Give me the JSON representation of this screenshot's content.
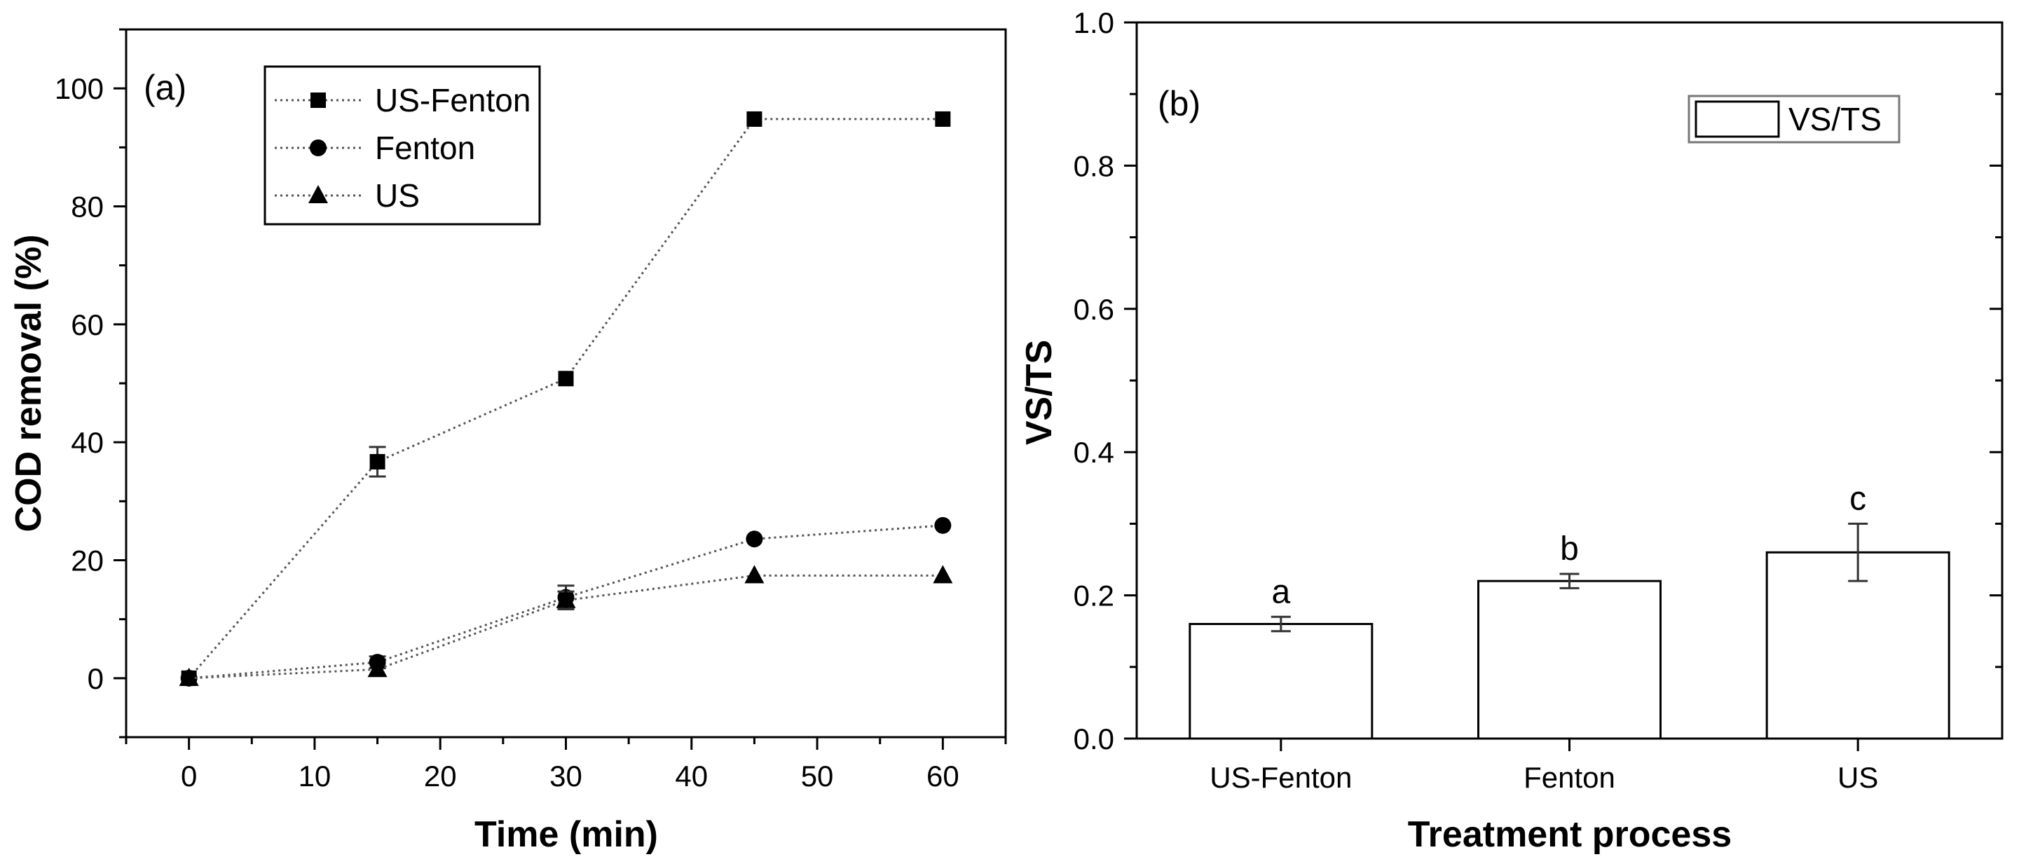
{
  "chart_data": [
    {
      "type": "line",
      "panel_label": "(a)",
      "xlabel": "Time (min)",
      "ylabel": "COD removal (%)",
      "xlim": [
        -5,
        65
      ],
      "ylim": [
        -10,
        110
      ],
      "xticks": [
        0,
        10,
        20,
        30,
        40,
        50,
        60
      ],
      "yticks": [
        0,
        20,
        40,
        60,
        80,
        100
      ],
      "legend_position": "top-left",
      "x": [
        0,
        15,
        30,
        45,
        60
      ],
      "series": [
        {
          "name": "US-Fenton",
          "marker": "square",
          "values": [
            0,
            36.7,
            50.8,
            94.8,
            94.8
          ],
          "errors": [
            0.5,
            2.5,
            0.5,
            0.5,
            0.5
          ]
        },
        {
          "name": "Fenton",
          "marker": "circle",
          "values": [
            0,
            2.7,
            13.7,
            23.6,
            25.9
          ],
          "errors": [
            0.5,
            1.0,
            2.0,
            0.5,
            0.5
          ]
        },
        {
          "name": "US",
          "marker": "triangle",
          "values": [
            0,
            1.5,
            13.2,
            17.4,
            17.4
          ],
          "errors": [
            0.5,
            0.5,
            1.5,
            0.5,
            0.5
          ]
        }
      ]
    },
    {
      "type": "bar",
      "panel_label": "(b)",
      "xlabel": "Treatment process",
      "ylabel": "VS/TS",
      "ylim": [
        0,
        1.0
      ],
      "yticks": [
        "0.0",
        "0.2",
        "0.4",
        "0.6",
        "0.8",
        "1.0"
      ],
      "legend_position": "top-right",
      "categories": [
        "US-Fenton",
        "Fenton",
        "US"
      ],
      "series": [
        {
          "name": "VS/TS",
          "values": [
            0.16,
            0.22,
            0.26
          ],
          "errors": [
            0.01,
            0.01,
            0.04
          ]
        }
      ],
      "annotations": [
        "a",
        "b",
        "c"
      ]
    }
  ]
}
